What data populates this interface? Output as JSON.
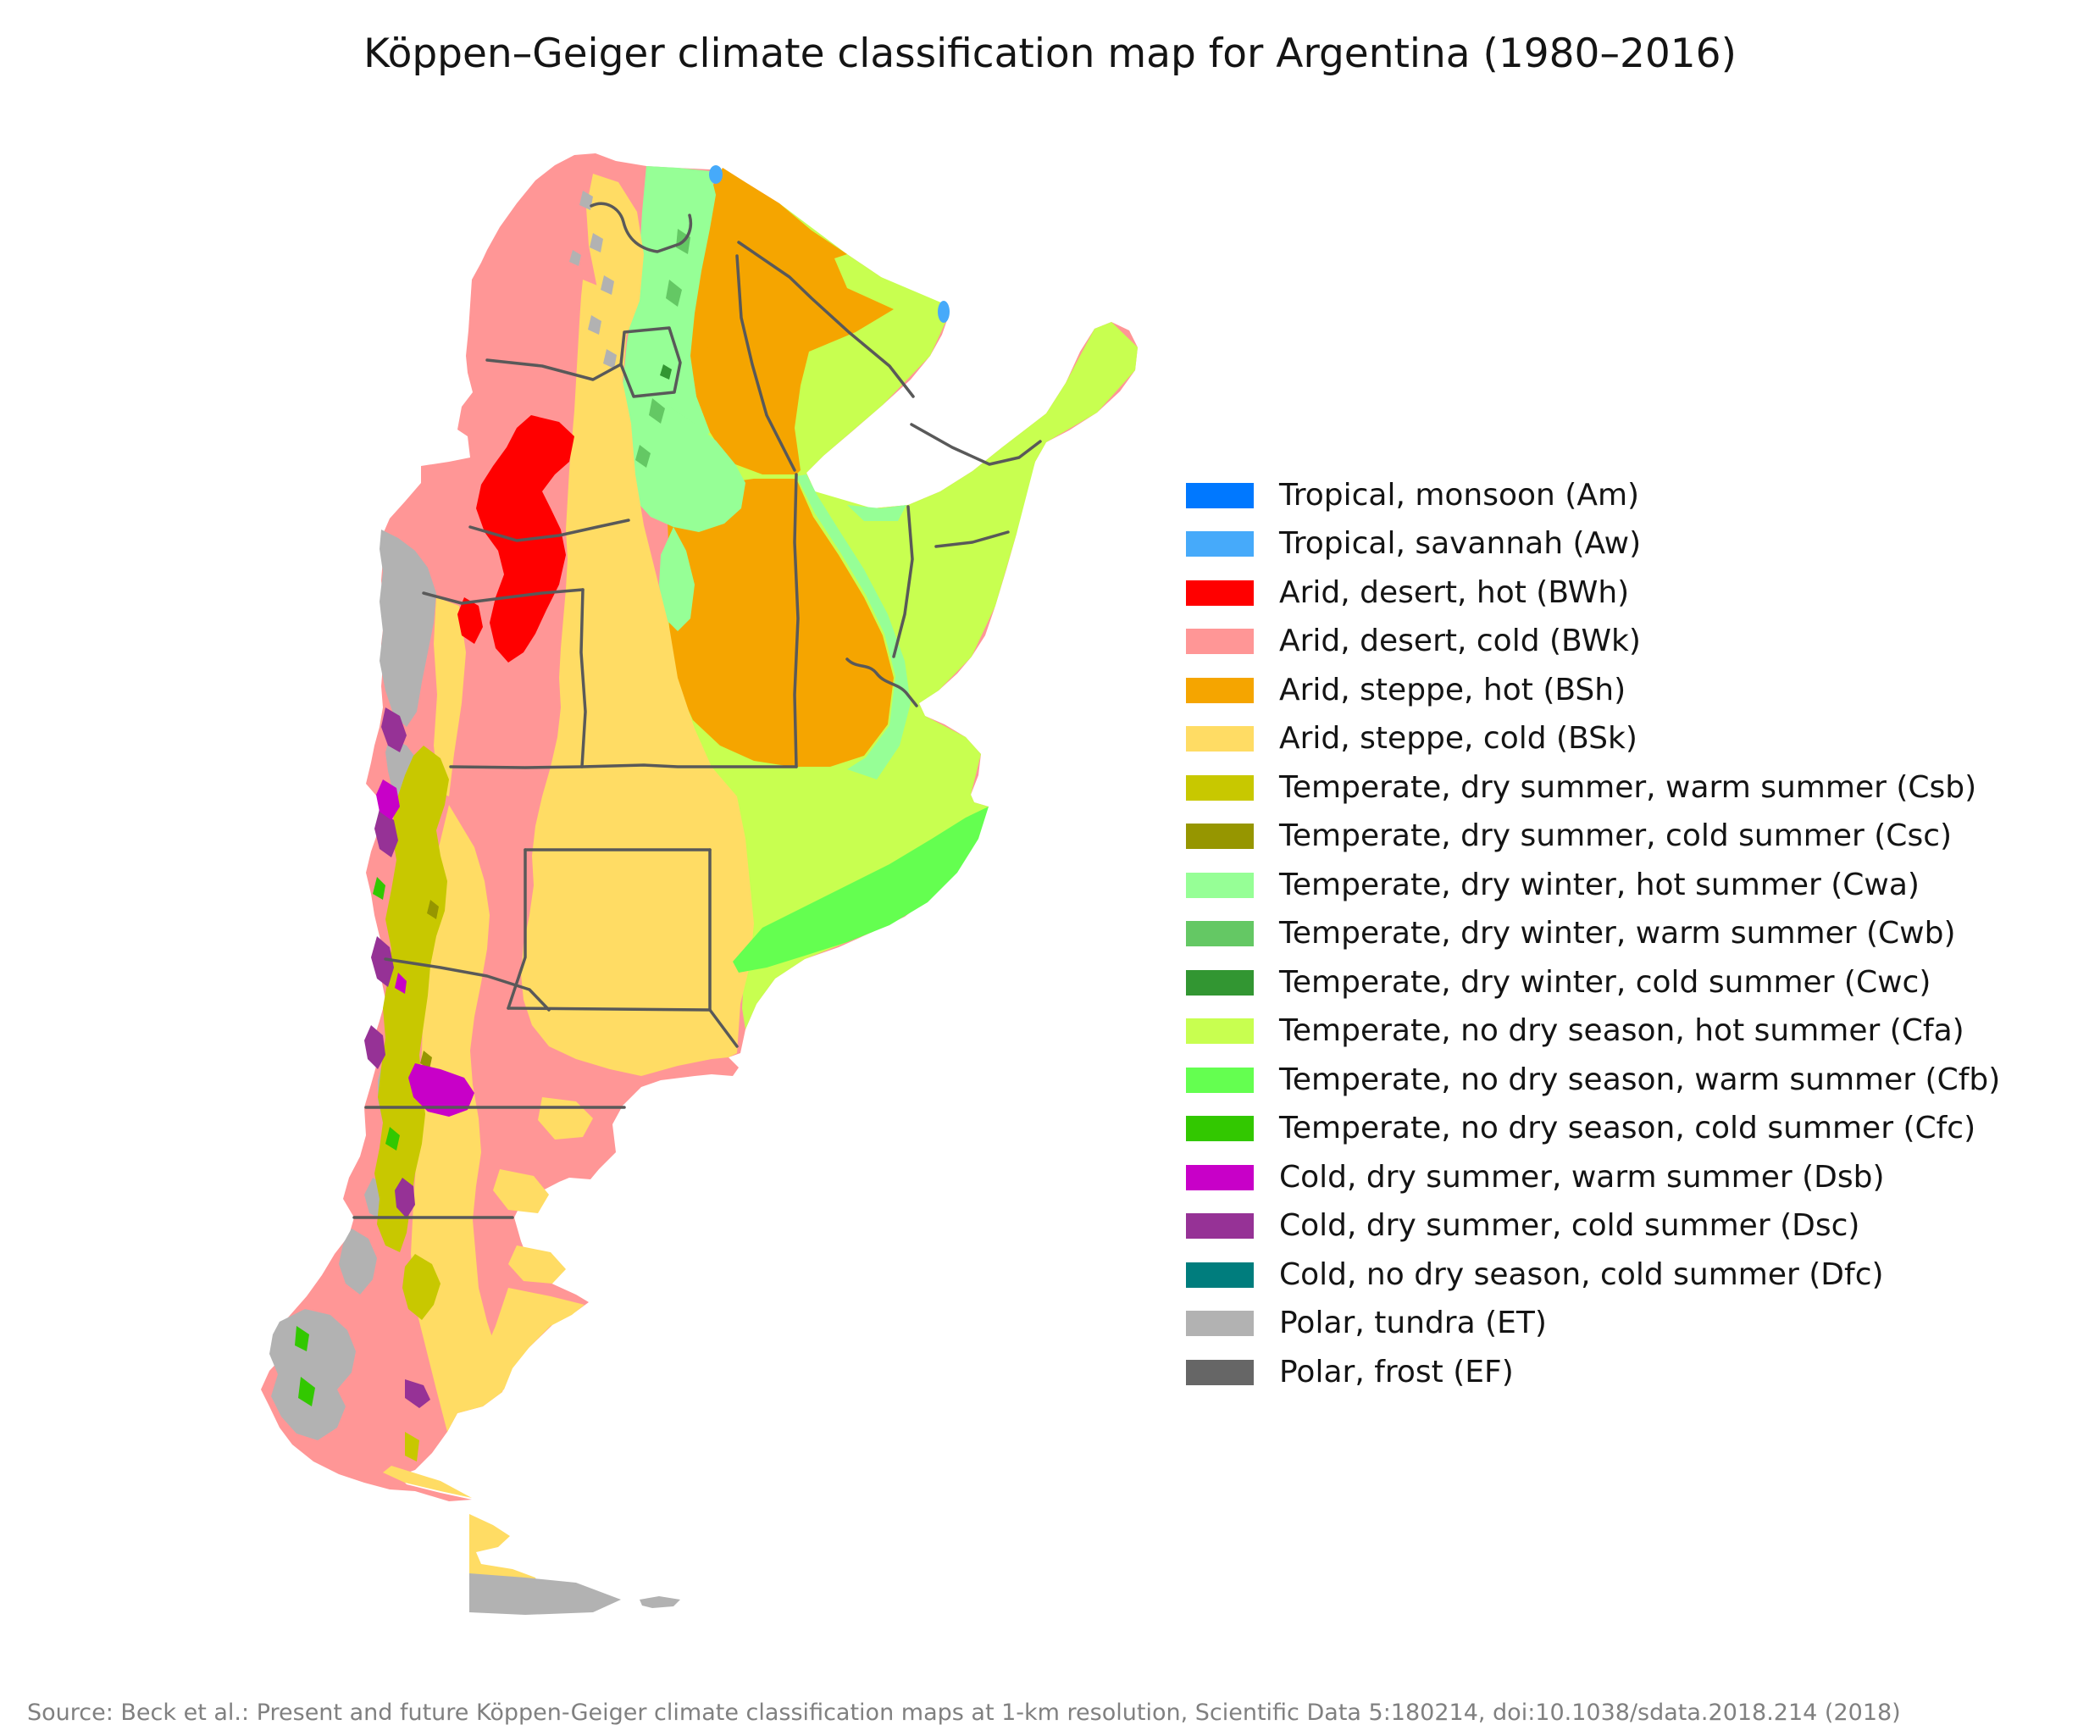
{
  "title": "Köppen–Geiger climate classification map for Argentina (1980–2016)",
  "source": "Source: Beck et al.: Present and future Köppen-Geiger climate classification maps at 1-km resolution, Scientific Data 5:180214, doi:10.1038/sdata.2018.214 (2018)",
  "map": {
    "border_color": "#595959",
    "base_climate": "BWk"
  },
  "legend": {
    "items": [
      {
        "code": "Am",
        "label": "Tropical, monsoon (Am)",
        "color": "#0078FF"
      },
      {
        "code": "Aw",
        "label": "Tropical, savannah (Aw)",
        "color": "#46AAFA"
      },
      {
        "code": "BWh",
        "label": "Arid, desert, hot (BWh)",
        "color": "#FF0000"
      },
      {
        "code": "BWk",
        "label": "Arid, desert, cold (BWk)",
        "color": "#FF9696"
      },
      {
        "code": "BSh",
        "label": "Arid, steppe, hot (BSh)",
        "color": "#F5A500"
      },
      {
        "code": "BSk",
        "label": "Arid, steppe, cold (BSk)",
        "color": "#FFDC64"
      },
      {
        "code": "Csb",
        "label": "Temperate, dry summer, warm summer (Csb)",
        "color": "#C8C800"
      },
      {
        "code": "Csc",
        "label": "Temperate, dry summer, cold summer (Csc)",
        "color": "#969600"
      },
      {
        "code": "Cwa",
        "label": "Temperate, dry winter, hot summer (Cwa)",
        "color": "#96FF96"
      },
      {
        "code": "Cwb",
        "label": "Temperate, dry winter, warm summer (Cwb)",
        "color": "#64C864"
      },
      {
        "code": "Cwc",
        "label": "Temperate, dry winter, cold summer (Cwc)",
        "color": "#329632"
      },
      {
        "code": "Cfa",
        "label": "Temperate, no dry season, hot summer (Cfa)",
        "color": "#C8FF50"
      },
      {
        "code": "Cfb",
        "label": "Temperate, no dry season, warm summer (Cfb)",
        "color": "#64FF50"
      },
      {
        "code": "Cfc",
        "label": "Temperate, no dry season, cold summer (Cfc)",
        "color": "#32C800"
      },
      {
        "code": "Dsb",
        "label": "Cold, dry summer, warm summer (Dsb)",
        "color": "#C800C8"
      },
      {
        "code": "Dsc",
        "label": "Cold, dry summer, cold summer (Dsc)",
        "color": "#963296"
      },
      {
        "code": "Dfc",
        "label": "Cold, no dry season, cold summer (Dfc)",
        "color": "#007D7D"
      },
      {
        "code": "ET",
        "label": "Polar, tundra (ET)",
        "color": "#B2B2B2"
      },
      {
        "code": "EF",
        "label": "Polar, frost (EF)",
        "color": "#666666"
      }
    ]
  }
}
